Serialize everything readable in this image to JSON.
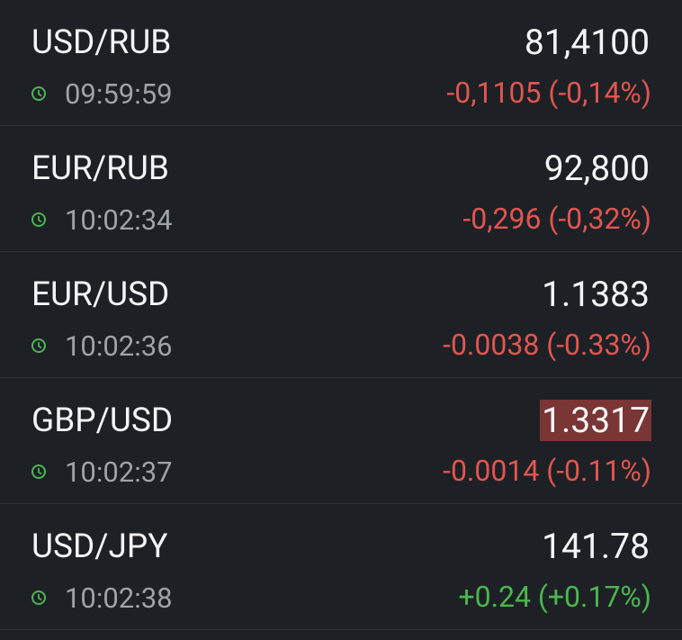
{
  "quotes": [
    {
      "pair": "USD/RUB",
      "time": "09:59:59",
      "price": "81,4100",
      "change": "-0,1105 (-0,14%)",
      "direction": "down",
      "highlight": false
    },
    {
      "pair": "EUR/RUB",
      "time": "10:02:34",
      "price": "92,800",
      "change": "-0,296 (-0,32%)",
      "direction": "down",
      "highlight": false
    },
    {
      "pair": "EUR/USD",
      "time": "10:02:36",
      "price": "1.1383",
      "change": "-0.0038 (-0.33%)",
      "direction": "down",
      "highlight": false
    },
    {
      "pair": "GBP/USD",
      "time": "10:02:37",
      "price": "1.3317",
      "change": "-0.0014 (-0.11%)",
      "direction": "down",
      "highlight": true
    },
    {
      "pair": "USD/JPY",
      "time": "10:02:38",
      "price": "141.78",
      "change": "+0.24 (+0.17%)",
      "direction": "up",
      "highlight": false
    }
  ]
}
